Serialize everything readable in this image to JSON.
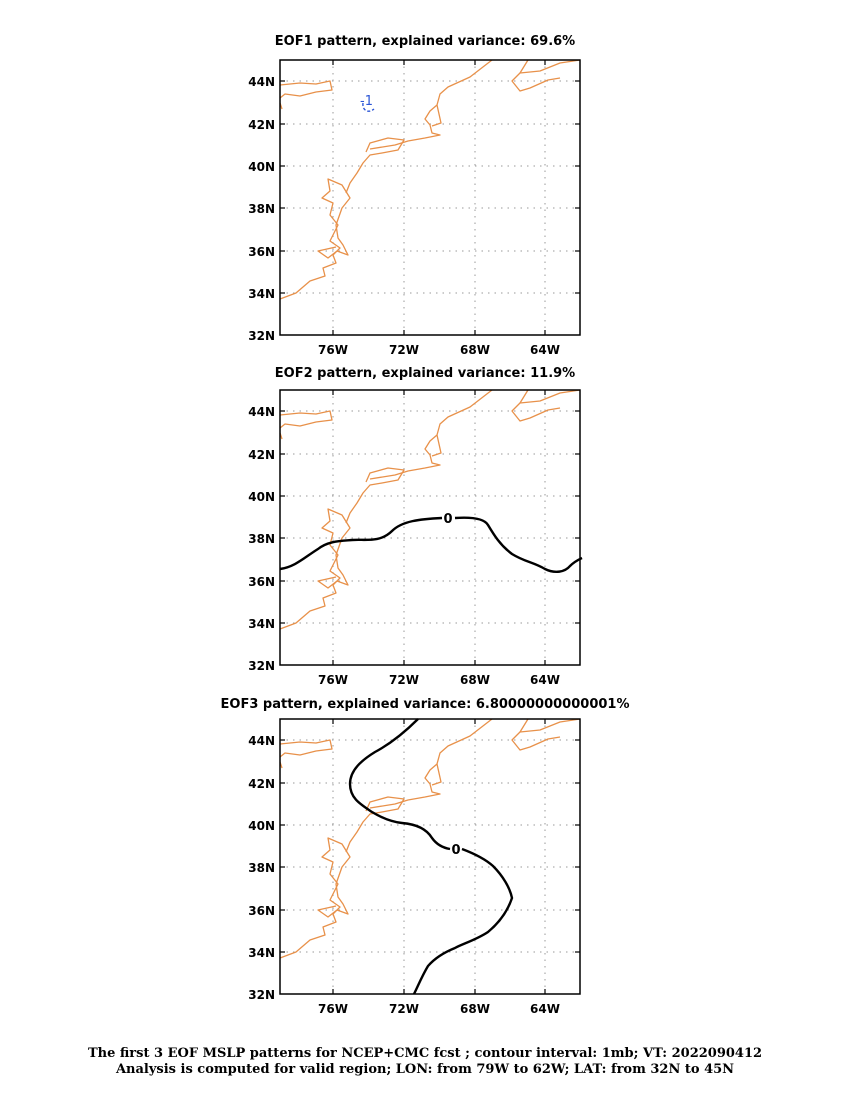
{
  "panels": [
    {
      "title": "EOF1 pattern, explained variance: 69.6%",
      "contour_labels": [
        "-1"
      ]
    },
    {
      "title": "EOF2 pattern, explained variance: 11.9%",
      "contour_labels": [
        "0"
      ]
    },
    {
      "title": "EOF3 pattern, explained variance: 6.80000000000001%",
      "contour_labels": [
        "0"
      ]
    }
  ],
  "axes": {
    "lat_labels": [
      "32N",
      "34N",
      "36N",
      "38N",
      "40N",
      "42N",
      "44N"
    ],
    "lon_labels": [
      "76W",
      "72W",
      "68W",
      "64W"
    ],
    "lon_range": [
      -79,
      -62
    ],
    "lat_range": [
      32,
      45
    ]
  },
  "colors": {
    "coastline": "#e8914a",
    "negative_contour": "#2b56d6",
    "zero_contour": "#000000"
  },
  "caption": {
    "line1": "The first 3 EOF MSLP patterns for NCEP+CMC fcst ; contour interval: 1mb; VT: 2022090412",
    "line2": "Analysis is computed for valid region; LON: from 79W to 62W; LAT: from 32N to 45N"
  }
}
